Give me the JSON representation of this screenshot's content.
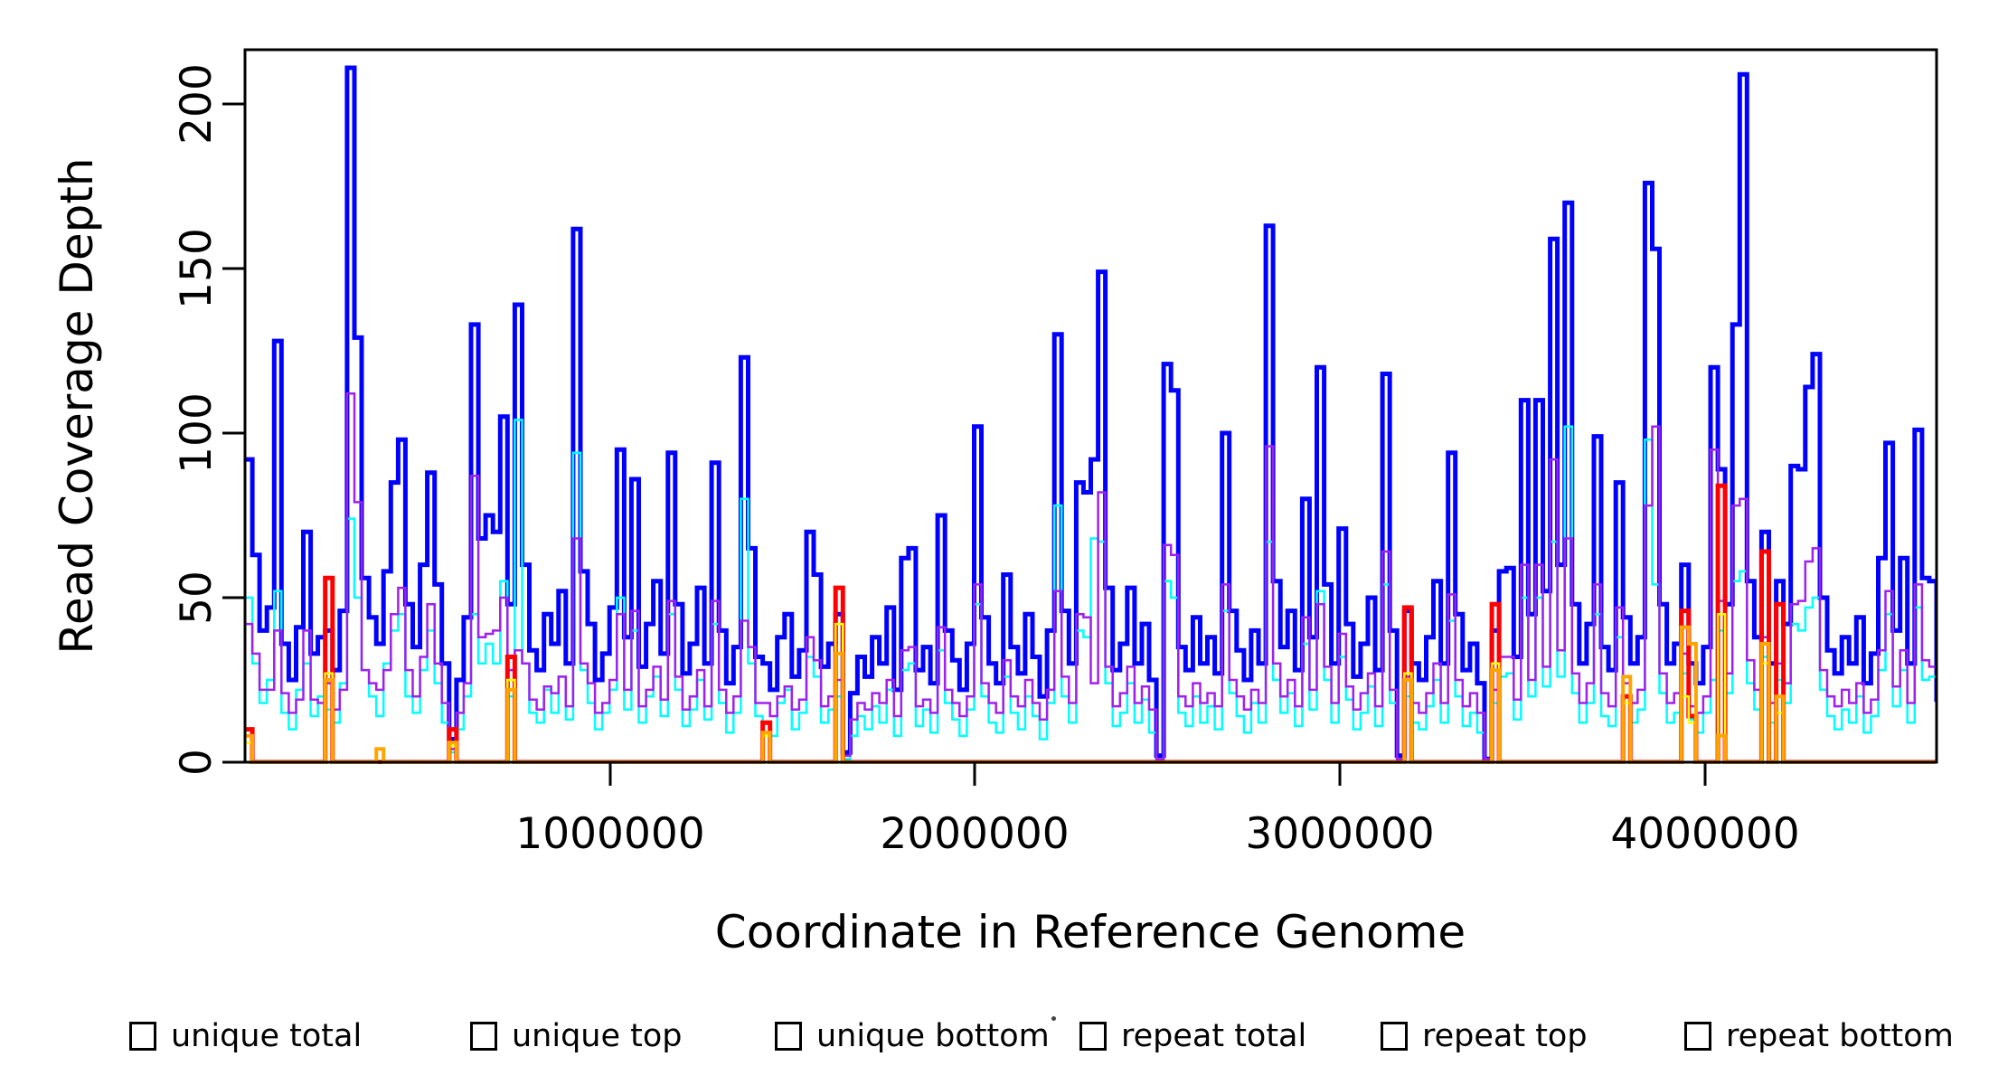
{
  "chart_data": {
    "type": "line",
    "subtype": "step-coverage-plot",
    "title": "",
    "xlabel": "Coordinate in Reference Genome",
    "ylabel": "Read Coverage Depth",
    "x_start": 0,
    "x_step": 20000,
    "xlim": [
      0,
      4640000
    ],
    "ylim": [
      0,
      216
    ],
    "grid": false,
    "legend_position": "bottom",
    "background": "#ffffff",
    "axis_color": "#000000",
    "x_ticks": [
      {
        "value": 1000000,
        "label": "1000000"
      },
      {
        "value": 2000000,
        "label": "2000000"
      },
      {
        "value": 3000000,
        "label": "3000000"
      },
      {
        "value": 4000000,
        "label": "4000000"
      }
    ],
    "y_ticks": [
      {
        "value": 0,
        "label": "0"
      },
      {
        "value": 50,
        "label": "50"
      },
      {
        "value": 100,
        "label": "100"
      },
      {
        "value": 150,
        "label": "150"
      },
      {
        "value": 200,
        "label": "200"
      }
    ],
    "series": [
      {
        "name": "unique total",
        "color": "#0000FF",
        "lwd": 5,
        "values": [
          92,
          63,
          40,
          47,
          128,
          36,
          25,
          41,
          70,
          33,
          38,
          40,
          28,
          46,
          211,
          129,
          56,
          44,
          36,
          58,
          85,
          98,
          48,
          35,
          60,
          88,
          54,
          30,
          7,
          25,
          44,
          133,
          68,
          75,
          70,
          105,
          48,
          139,
          60,
          34,
          28,
          45,
          36,
          52,
          30,
          162,
          58,
          42,
          25,
          33,
          47,
          95,
          38,
          86,
          29,
          42,
          55,
          33,
          94,
          48,
          27,
          36,
          53,
          30,
          91,
          40,
          24,
          35,
          123,
          65,
          32,
          30,
          22,
          38,
          45,
          26,
          34,
          70,
          57,
          29,
          36,
          45,
          3,
          21,
          32,
          26,
          38,
          30,
          47,
          22,
          62,
          65,
          28,
          35,
          24,
          75,
          40,
          31,
          22,
          36,
          102,
          44,
          30,
          24,
          57,
          35,
          27,
          45,
          32,
          20,
          40,
          130,
          46,
          30,
          85,
          82,
          92,
          149,
          53,
          28,
          36,
          53,
          30,
          42,
          25,
          2,
          121,
          113,
          35,
          28,
          44,
          30,
          38,
          27,
          100,
          46,
          34,
          25,
          40,
          30,
          163,
          55,
          35,
          46,
          28,
          80,
          38,
          120,
          54,
          30,
          71,
          42,
          26,
          36,
          50,
          28,
          118,
          40,
          2,
          46,
          30,
          25,
          38,
          55,
          30,
          94,
          45,
          28,
          36,
          24,
          1,
          40,
          58,
          59,
          32,
          110,
          45,
          110,
          52,
          159,
          60,
          170,
          48,
          30,
          42,
          99,
          35,
          28,
          85,
          44,
          30,
          38,
          176,
          156,
          48,
          30,
          36,
          60,
          30,
          24,
          35,
          120,
          89,
          48,
          133,
          209,
          55,
          38,
          70,
          30,
          55,
          42,
          90,
          89,
          114,
          124,
          50,
          34,
          27,
          38,
          30,
          44,
          24,
          33,
          62,
          97,
          40,
          62,
          30,
          101,
          56,
          55,
          19
        ]
      },
      {
        "name": "unique top",
        "color": "#00FFFF",
        "lwd": 2.5,
        "values": [
          50,
          30,
          18,
          25,
          52,
          15,
          10,
          22,
          30,
          14,
          20,
          16,
          12,
          24,
          74,
          50,
          28,
          20,
          14,
          30,
          40,
          45,
          20,
          15,
          28,
          40,
          24,
          12,
          3,
          10,
          20,
          45,
          30,
          36,
          30,
          55,
          20,
          104,
          30,
          15,
          12,
          22,
          15,
          26,
          13,
          94,
          28,
          18,
          10,
          15,
          22,
          50,
          16,
          40,
          12,
          20,
          26,
          14,
          45,
          22,
          11,
          16,
          25,
          13,
          42,
          18,
          9,
          15,
          80,
          30,
          14,
          12,
          8,
          18,
          22,
          10,
          15,
          32,
          26,
          12,
          16,
          20,
          1,
          8,
          14,
          10,
          17,
          12,
          22,
          8,
          28,
          30,
          11,
          16,
          9,
          34,
          18,
          13,
          8,
          16,
          48,
          20,
          12,
          9,
          26,
          15,
          10,
          20,
          14,
          7,
          18,
          78,
          20,
          12,
          40,
          38,
          68,
          67,
          24,
          11,
          15,
          24,
          12,
          19,
          9,
          1,
          55,
          50,
          15,
          11,
          20,
          12,
          17,
          10,
          46,
          21,
          14,
          9,
          18,
          12,
          67,
          25,
          15,
          21,
          11,
          36,
          16,
          52,
          25,
          12,
          32,
          19,
          10,
          15,
          23,
          11,
          54,
          18,
          1,
          20,
          12,
          10,
          17,
          25,
          12,
          43,
          20,
          11,
          15,
          9,
          0,
          18,
          26,
          27,
          13,
          50,
          20,
          50,
          23,
          67,
          26,
          102,
          21,
          12,
          18,
          45,
          14,
          11,
          38,
          20,
          12,
          16,
          98,
          54,
          21,
          12,
          15,
          27,
          13,
          9,
          15,
          25,
          40,
          21,
          55,
          58,
          24,
          16,
          32,
          12,
          25,
          18,
          42,
          40,
          47,
          50,
          22,
          14,
          10,
          16,
          12,
          20,
          9,
          14,
          28,
          45,
          17,
          28,
          12,
          47,
          25,
          26,
          8
        ]
      },
      {
        "name": "unique bottom",
        "color": "#A020F0",
        "lwd": 2.5,
        "values": [
          42,
          33,
          22,
          22,
          40,
          21,
          15,
          19,
          40,
          19,
          18,
          24,
          16,
          22,
          112,
          79,
          28,
          24,
          22,
          28,
          45,
          53,
          28,
          20,
          32,
          48,
          30,
          18,
          4,
          15,
          24,
          87,
          38,
          39,
          40,
          50,
          28,
          34,
          30,
          19,
          16,
          23,
          21,
          26,
          17,
          68,
          30,
          24,
          15,
          18,
          25,
          45,
          22,
          46,
          17,
          22,
          29,
          19,
          49,
          26,
          16,
          20,
          28,
          17,
          49,
          22,
          15,
          20,
          43,
          35,
          18,
          18,
          14,
          20,
          23,
          16,
          19,
          38,
          31,
          17,
          20,
          25,
          2,
          13,
          18,
          16,
          21,
          18,
          25,
          14,
          34,
          35,
          17,
          19,
          15,
          41,
          22,
          18,
          14,
          20,
          54,
          24,
          18,
          15,
          31,
          20,
          17,
          25,
          18,
          13,
          22,
          52,
          26,
          18,
          45,
          44,
          24,
          82,
          29,
          17,
          21,
          29,
          18,
          23,
          16,
          1,
          66,
          63,
          20,
          17,
          24,
          18,
          21,
          17,
          54,
          25,
          20,
          16,
          22,
          18,
          96,
          30,
          20,
          25,
          17,
          44,
          22,
          48,
          29,
          18,
          39,
          23,
          16,
          21,
          27,
          17,
          64,
          22,
          1,
          26,
          18,
          15,
          21,
          30,
          18,
          51,
          25,
          17,
          21,
          15,
          1,
          22,
          32,
          32,
          19,
          60,
          25,
          60,
          29,
          92,
          34,
          68,
          27,
          18,
          24,
          54,
          21,
          17,
          47,
          24,
          18,
          22,
          78,
          102,
          27,
          18,
          21,
          33,
          17,
          15,
          20,
          95,
          49,
          27,
          78,
          80,
          31,
          22,
          38,
          18,
          30,
          24,
          48,
          49,
          61,
          65,
          28,
          20,
          17,
          22,
          18,
          24,
          15,
          19,
          34,
          52,
          23,
          34,
          18,
          54,
          31,
          29,
          11
        ]
      },
      {
        "name": "repeat total",
        "color": "#FF0000",
        "lwd": 5,
        "spikes": [
          {
            "i": 0,
            "v": 10
          },
          {
            "i": 11,
            "v": 56
          },
          {
            "i": 28,
            "v": 10
          },
          {
            "i": 36,
            "v": 32
          },
          {
            "i": 71,
            "v": 12
          },
          {
            "i": 81,
            "v": 53
          },
          {
            "i": 159,
            "v": 47
          },
          {
            "i": 171,
            "v": 48
          },
          {
            "i": 189,
            "v": 20
          },
          {
            "i": 197,
            "v": 46
          },
          {
            "i": 198,
            "v": 14
          },
          {
            "i": 202,
            "v": 84
          },
          {
            "i": 208,
            "v": 64
          },
          {
            "i": 210,
            "v": 48
          }
        ]
      },
      {
        "name": "repeat top",
        "color": "#FFFF00",
        "lwd": 2.5,
        "spikes": [
          {
            "i": 0,
            "v": 6
          },
          {
            "i": 11,
            "v": 27
          },
          {
            "i": 28,
            "v": 5
          },
          {
            "i": 36,
            "v": 25
          },
          {
            "i": 71,
            "v": 8
          },
          {
            "i": 81,
            "v": 42
          },
          {
            "i": 159,
            "v": 27
          },
          {
            "i": 171,
            "v": 30
          },
          {
            "i": 189,
            "v": 18
          },
          {
            "i": 197,
            "v": 20
          },
          {
            "i": 198,
            "v": 12
          },
          {
            "i": 202,
            "v": 45
          },
          {
            "i": 208,
            "v": 30
          },
          {
            "i": 210,
            "v": 15
          }
        ]
      },
      {
        "name": "repeat bottom",
        "color": "#FFA500",
        "lwd": 4,
        "spikes": [
          {
            "i": 0,
            "v": 8
          },
          {
            "i": 11,
            "v": 25
          },
          {
            "i": 18,
            "v": 4
          },
          {
            "i": 28,
            "v": 6
          },
          {
            "i": 36,
            "v": 22
          },
          {
            "i": 71,
            "v": 9
          },
          {
            "i": 81,
            "v": 33
          },
          {
            "i": 159,
            "v": 25
          },
          {
            "i": 171,
            "v": 28
          },
          {
            "i": 189,
            "v": 26
          },
          {
            "i": 197,
            "v": 41
          },
          {
            "i": 198,
            "v": 36
          },
          {
            "i": 202,
            "v": 8
          },
          {
            "i": 208,
            "v": 36
          },
          {
            "i": 210,
            "v": 20
          }
        ]
      }
    ],
    "legend": [
      {
        "label": "unique total",
        "color": "#0000FF"
      },
      {
        "label": "unique top",
        "color": "#00FFFF"
      },
      {
        "label": "unique bottom",
        "color": "#A020F0"
      },
      {
        "label": "repeat total",
        "color": "#FF0000"
      },
      {
        "label": "repeat top",
        "color": "#FFFF00"
      },
      {
        "label": "repeat bottom",
        "color": "#FFA500"
      }
    ]
  }
}
